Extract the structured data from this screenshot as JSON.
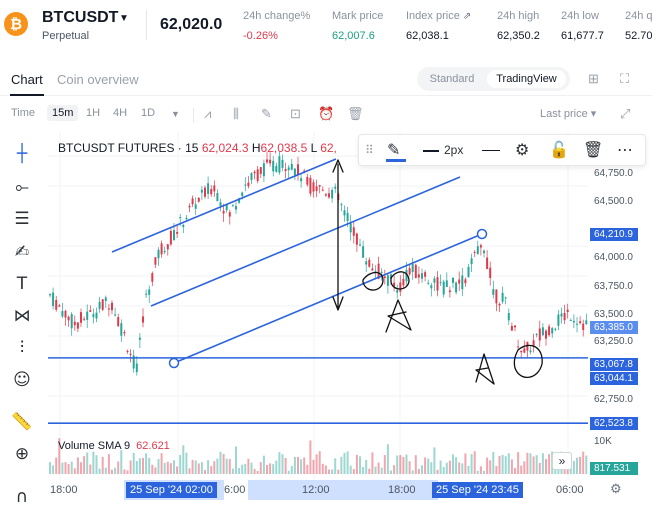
{
  "header": {
    "coin_glyph": "₿",
    "symbol": "BTCUSDT",
    "caret": "▼",
    "contract": "Perpetual",
    "last_price": "62,020.0",
    "stats": [
      {
        "label": "24h change%",
        "value": "-0.26%",
        "color": "#e0394b"
      },
      {
        "label": "Mark price",
        "value": "62,007.6",
        "color": "#1aa37a"
      },
      {
        "label": "Index price",
        "value": "62,038.1",
        "color": "#121826"
      },
      {
        "label": "24h high",
        "value": "62,350.2",
        "color": "#121826"
      },
      {
        "label": "24h low",
        "value": "61,677.7",
        "color": "#121826"
      },
      {
        "label": "24h q",
        "value": "52.70",
        "color": "#121826"
      }
    ]
  },
  "tabs": {
    "chart": "Chart",
    "overview": "Coin overview",
    "standard": "Standard",
    "tradingview": "TradingView"
  },
  "toolbar": {
    "time": "Time",
    "intervals": [
      "15m",
      "1H",
      "4H",
      "1D"
    ],
    "selected_interval": "15m",
    "price_mode": "Last price ▾"
  },
  "chart_header": {
    "title": "BTCUSDT FUTURES · 15",
    "open": "62,024.3",
    "high_label": "H",
    "high": "62,038.5",
    "low_label": "L",
    "low": "62,"
  },
  "drawing_toolbar": {
    "width_label": "2px"
  },
  "volume": {
    "label": "Volume SMA 9",
    "value": "62.621"
  },
  "price_axis": {
    "ticks": [
      "64,750.0",
      "64,500.0",
      "64,000.0",
      "63,750.0",
      "63,500.0",
      "63,250.0",
      "62,750.0"
    ],
    "tags": [
      {
        "text": "64,210.9",
        "color": "#2b64dd"
      },
      {
        "text": "63,385.0",
        "color": "#5b8def"
      },
      {
        "text": "63,067.8",
        "color": "#2b64dd"
      },
      {
        "text": "63,044.1",
        "color": "#2b64dd"
      },
      {
        "text": "62,523.8",
        "color": "#2b64dd"
      }
    ],
    "volume_scale": "10K",
    "volume_tag": "817.531",
    "volume_tag_color": "#26a69a"
  },
  "time_axis": {
    "labels": [
      "18:00",
      "6:00",
      "12:00",
      "18:00",
      "06:00"
    ],
    "cursor_start": "25 Sep '24  02:00",
    "cursor_end": "25 Sep '24  23:45",
    "scroll_glyph": "»"
  },
  "chart_data": {
    "type": "candlestick",
    "symbol": "BTCUSDT FUTURES",
    "interval": "15",
    "up_color": "#26a69a",
    "down_color": "#e0394b",
    "yrange": [
      62450,
      64900
    ],
    "y_ticks": [
      64750,
      64500,
      64000,
      63750,
      63500,
      63250,
      62750
    ],
    "horizontal_lines": [
      63067.8,
      62523.8
    ],
    "channel_lines": "parallel upward channel drawn with 3 blue trend lines"
  }
}
